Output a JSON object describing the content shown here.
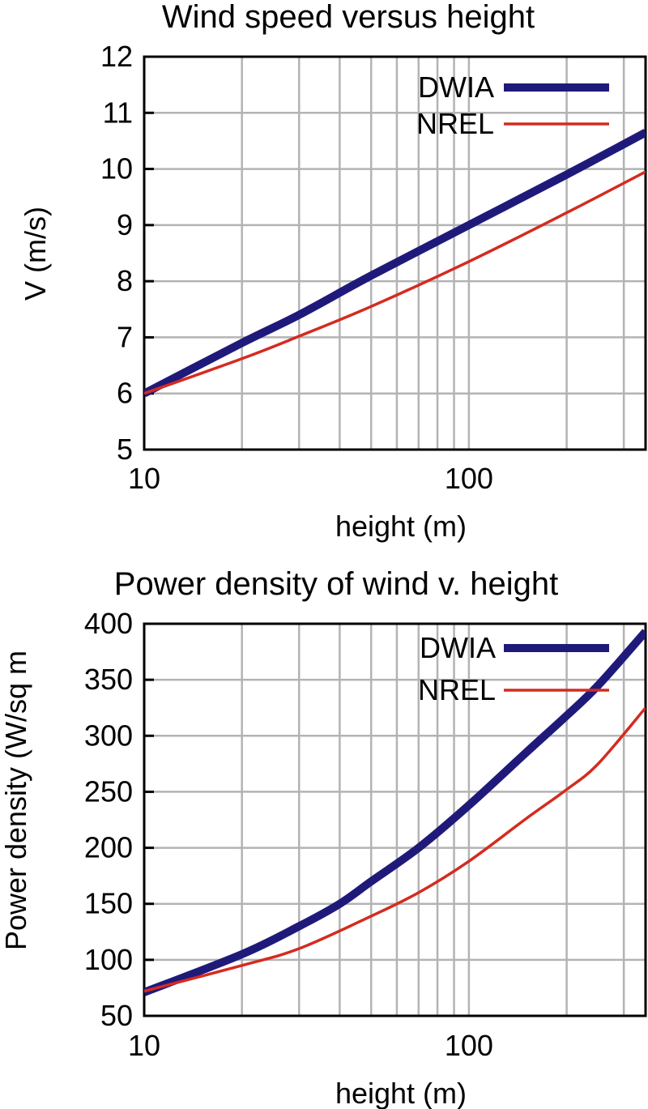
{
  "chart_data": [
    {
      "type": "line",
      "title": "Wind speed versus height",
      "xlabel": "height (m)",
      "ylabel": "V (m/s)",
      "xscale": "log",
      "xlim": [
        10,
        350
      ],
      "ylim": [
        5,
        12
      ],
      "xticks": [
        10,
        100
      ],
      "yticks": [
        5,
        6,
        7,
        8,
        9,
        10,
        11,
        12
      ],
      "grid": true,
      "legend": "top-right",
      "series": [
        {
          "name": "DWIA",
          "color": "#1f1a7a",
          "x": [
            10,
            20,
            30,
            50,
            100,
            200,
            350
          ],
          "y": [
            6.0,
            6.9,
            7.4,
            8.1,
            9.0,
            9.9,
            10.65
          ]
        },
        {
          "name": "NREL",
          "color": "#d42b20",
          "x": [
            10,
            20,
            30,
            50,
            100,
            200,
            350
          ],
          "y": [
            6.0,
            6.62,
            7.02,
            7.55,
            8.35,
            9.22,
            9.95
          ]
        }
      ]
    },
    {
      "type": "line",
      "title": "Power density of wind v. height",
      "xlabel": "height (m)",
      "ylabel": "Power density (W/sq m",
      "xscale": "log",
      "xlim": [
        10,
        350
      ],
      "ylim": [
        50,
        400
      ],
      "xticks": [
        10,
        100
      ],
      "yticks": [
        50,
        100,
        150,
        200,
        250,
        300,
        350,
        400
      ],
      "grid": true,
      "legend": "top-right",
      "series": [
        {
          "name": "DWIA",
          "color": "#1f1a7a",
          "x": [
            10,
            20,
            30,
            40,
            50,
            70,
            100,
            150,
            200,
            250,
            350
          ],
          "y": [
            71,
            105,
            130,
            150,
            170,
            200,
            238,
            285,
            318,
            345,
            393
          ]
        },
        {
          "name": "NREL",
          "color": "#d42b20",
          "x": [
            10,
            20,
            30,
            50,
            70,
            100,
            150,
            200,
            250,
            350
          ],
          "y": [
            72,
            95,
            110,
            139,
            160,
            188,
            226,
            252,
            275,
            325
          ]
        }
      ]
    }
  ]
}
